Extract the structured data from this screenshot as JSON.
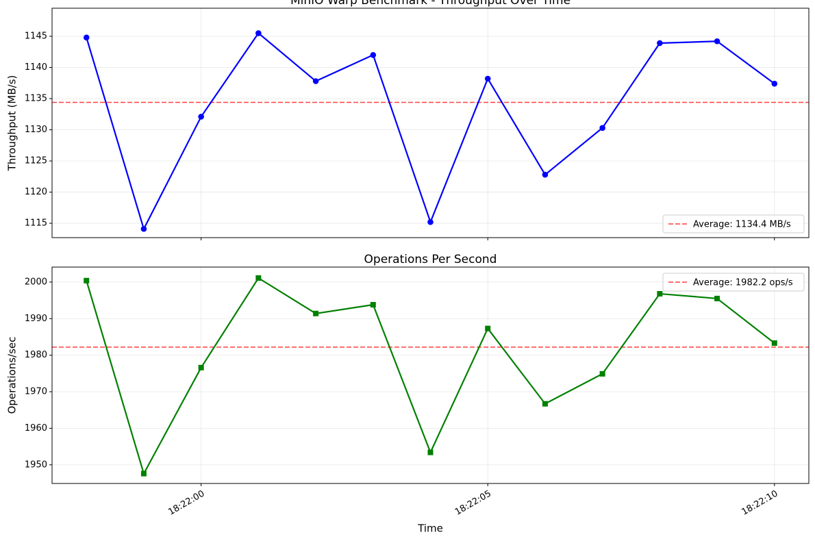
{
  "chart_data": [
    {
      "type": "line",
      "title": "MinIO Warp Benchmark - Throughput Over Time",
      "ylabel": "Throughput (MB/s)",
      "x": [
        "18:21:58",
        "18:21:59",
        "18:22:00",
        "18:22:01",
        "18:22:02",
        "18:22:03",
        "18:22:04",
        "18:22:05",
        "18:22:06",
        "18:22:07",
        "18:22:08",
        "18:22:09",
        "18:22:10"
      ],
      "series": [
        {
          "name": "Throughput",
          "color": "#0000ff",
          "marker": "circle",
          "values": [
            1144.8,
            1114.1,
            1132.1,
            1145.5,
            1137.8,
            1142.0,
            1115.2,
            1138.2,
            1122.8,
            1130.3,
            1143.9,
            1144.2,
            1137.4
          ]
        }
      ],
      "reference_line": {
        "name": "Average: 1134.4 MB/s",
        "value": 1134.4,
        "color": "#ff0000",
        "style": "dashed"
      },
      "xlim": [
        "18:21:57.4",
        "18:22:10.6"
      ],
      "xticks": [
        "18:22:00",
        "18:22:05",
        "18:22:10"
      ],
      "show_xtick_labels": false,
      "ylim": [
        1112.7,
        1149.5
      ],
      "yticks": [
        1115,
        1120,
        1125,
        1130,
        1135,
        1140,
        1145
      ],
      "grid": true,
      "legend": "lower right"
    },
    {
      "type": "line",
      "title": "Operations Per Second",
      "ylabel": "Operations/sec",
      "xlabel": "Time",
      "x": [
        "18:21:58",
        "18:21:59",
        "18:22:00",
        "18:22:01",
        "18:22:02",
        "18:22:03",
        "18:22:04",
        "18:22:05",
        "18:22:06",
        "18:22:07",
        "18:22:08",
        "18:22:09",
        "18:22:10"
      ],
      "series": [
        {
          "name": "Operations",
          "color": "#008000",
          "marker": "square",
          "values": [
            2000.4,
            1947.6,
            1976.6,
            2001.1,
            1991.4,
            1993.8,
            1953.4,
            1987.3,
            1966.7,
            1974.9,
            1996.8,
            1995.5,
            1983.3
          ]
        }
      ],
      "reference_line": {
        "name": "Average: 1982.2 ops/s",
        "value": 1982.2,
        "color": "#ff0000",
        "style": "dashed"
      },
      "xlim": [
        "18:21:57.4",
        "18:22:10.6"
      ],
      "xticks": [
        "18:22:00",
        "18:22:05",
        "18:22:10"
      ],
      "show_xtick_labels": true,
      "ylim": [
        1944.9,
        2004.1
      ],
      "yticks": [
        1950,
        1960,
        1970,
        1980,
        1990,
        2000
      ],
      "grid": true,
      "legend": "upper right"
    }
  ]
}
